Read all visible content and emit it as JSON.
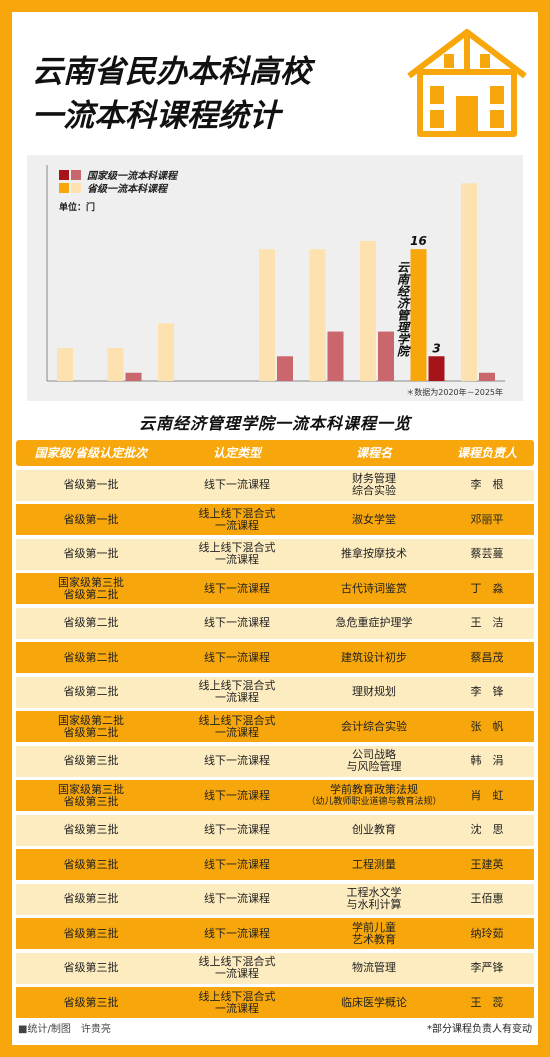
{
  "title": {
    "line1": "云南省民办本科高校",
    "line2": "一流本科课程统计"
  },
  "chart_data": {
    "type": "bar",
    "legend": {
      "national": "国家级一流本科课程",
      "provincial": "省级一流本科课程"
    },
    "unit_label": "单位：门",
    "highlight_label": "云南经济管理学院",
    "footnote": "＊数据为2020年－2025年",
    "series": [
      {
        "key": "provincial",
        "values": [
          4,
          4,
          7,
          0,
          16,
          16,
          17,
          16,
          24
        ],
        "color": "#fde2b0"
      },
      {
        "key": "national",
        "values": [
          0,
          1,
          0,
          0,
          3,
          6,
          6,
          3,
          1
        ],
        "color": "#c9676d"
      }
    ],
    "highlight": {
      "index": 7,
      "provincial_color": "#f7a70b",
      "national_color": "#a51418",
      "provincial_value": "16",
      "national_value": "3"
    },
    "ylim": [
      0,
      25
    ],
    "grid": false
  },
  "table": {
    "title": "云南经济管理学院一流本科课程一览",
    "headers": [
      "国家级/省级认定批次",
      "认定类型",
      "课程名",
      "课程负责人"
    ],
    "rows": [
      {
        "batch": [
          "省级第一批"
        ],
        "type": [
          "线下一流课程"
        ],
        "course": [
          "财务管理",
          "综合实验"
        ],
        "lead": "李　根"
      },
      {
        "batch": [
          "省级第一批"
        ],
        "type": [
          "线上线下混合式",
          "一流课程"
        ],
        "course": [
          "淑女学堂"
        ],
        "lead": "邓丽平"
      },
      {
        "batch": [
          "省级第一批"
        ],
        "type": [
          "线上线下混合式",
          "一流课程"
        ],
        "course": [
          "推拿按摩技术"
        ],
        "lead": "蔡芸蔓"
      },
      {
        "batch": [
          "国家级第三批",
          "省级第二批"
        ],
        "type": [
          "线下一流课程"
        ],
        "course": [
          "古代诗词鉴赏"
        ],
        "lead": "丁　淼"
      },
      {
        "batch": [
          "省级第二批"
        ],
        "type": [
          "线下一流课程"
        ],
        "course": [
          "急危重症护理学"
        ],
        "lead": "王　洁"
      },
      {
        "batch": [
          "省级第二批"
        ],
        "type": [
          "线下一流课程"
        ],
        "course": [
          "建筑设计初步"
        ],
        "lead": "蔡昌茂"
      },
      {
        "batch": [
          "省级第二批"
        ],
        "type": [
          "线上线下混合式",
          "一流课程"
        ],
        "course": [
          "理财规划"
        ],
        "lead": "李　锋"
      },
      {
        "batch": [
          "国家级第二批",
          "省级第二批"
        ],
        "type": [
          "线上线下混合式",
          "一流课程"
        ],
        "course": [
          "会计综合实验"
        ],
        "lead": "张　帆"
      },
      {
        "batch": [
          "省级第三批"
        ],
        "type": [
          "线下一流课程"
        ],
        "course": [
          "公司战略",
          "与风险管理"
        ],
        "lead": "韩　涓"
      },
      {
        "batch": [
          "国家级第三批",
          "省级第三批"
        ],
        "type": [
          "线下一流课程"
        ],
        "course": [
          "学前教育政策法规",
          "（幼儿教师职业道德与教育法规）"
        ],
        "lead": "肖　虹"
      },
      {
        "batch": [
          "省级第三批"
        ],
        "type": [
          "线下一流课程"
        ],
        "course": [
          "创业教育"
        ],
        "lead": "沈　思"
      },
      {
        "batch": [
          "省级第三批"
        ],
        "type": [
          "线下一流课程"
        ],
        "course": [
          "工程测量"
        ],
        "lead": "王建英"
      },
      {
        "batch": [
          "省级第三批"
        ],
        "type": [
          "线下一流课程"
        ],
        "course": [
          "工程水文学",
          "与水利计算"
        ],
        "lead": "王佰惠"
      },
      {
        "batch": [
          "省级第三批"
        ],
        "type": [
          "线下一流课程"
        ],
        "course": [
          "学前儿童",
          "艺术教育"
        ],
        "lead": "纳玲茹"
      },
      {
        "batch": [
          "省级第三批"
        ],
        "type": [
          "线上线下混合式",
          "一流课程"
        ],
        "course": [
          "物流管理"
        ],
        "lead": "李严锋"
      },
      {
        "batch": [
          "省级第三批"
        ],
        "type": [
          "线上线下混合式",
          "一流课程"
        ],
        "course": [
          "临床医学概论"
        ],
        "lead": "王　蕊"
      }
    ]
  },
  "footer": {
    "credit": "■统计/制图　许贵亮",
    "note": "*部分课程负责人有变动"
  }
}
